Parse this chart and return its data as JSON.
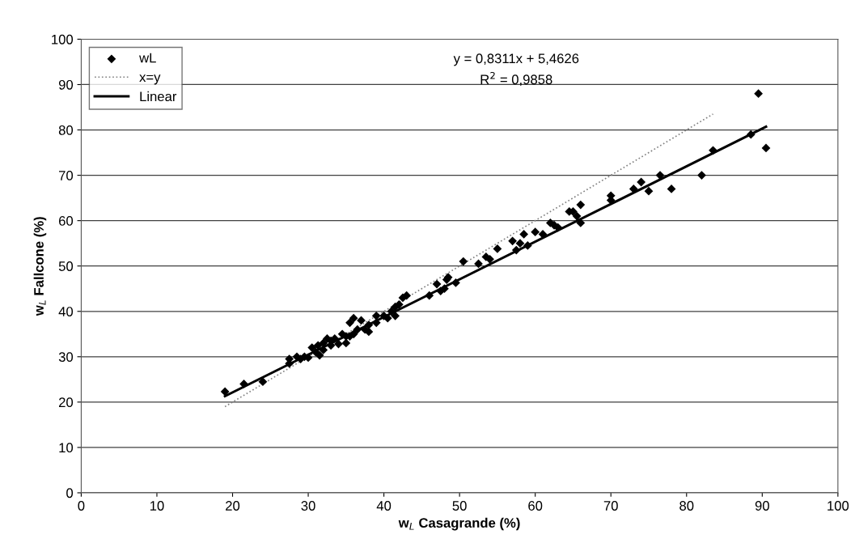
{
  "chart_data": {
    "type": "scatter",
    "xlabel": "w$_{L}$ Casagrande (%)",
    "ylabel": "w$_{L}$ Fallcone (%)",
    "xlim": [
      0,
      100
    ],
    "ylim": [
      0,
      100
    ],
    "xticks": [
      0,
      10,
      20,
      30,
      40,
      50,
      60,
      70,
      80,
      90,
      100
    ],
    "yticks": [
      0,
      10,
      20,
      30,
      40,
      50,
      60,
      70,
      80,
      90,
      100
    ],
    "grid": "y",
    "legend": "top left",
    "marker": "diamond",
    "annotations": [
      "y = 0,8311x + 5,4626",
      "R$^{2}$ = 0,9858"
    ],
    "series": [
      {
        "name": "wL",
        "color": "#000000",
        "x": [
          19,
          21.5,
          24,
          27.5,
          27.5,
          28.5,
          29,
          29.5,
          30,
          30.5,
          31,
          31.3,
          31.5,
          32,
          32,
          32.5,
          33,
          33,
          33.5,
          34,
          34.5,
          35,
          35,
          35.5,
          35.5,
          36,
          36,
          36.5,
          37,
          37.5,
          38,
          38,
          39,
          39,
          40,
          40.5,
          41,
          41.5,
          41.5,
          42,
          42.5,
          43,
          46,
          47,
          47.5,
          48,
          48.3,
          48.5,
          49.5,
          50.5,
          52.5,
          53.5,
          54,
          55,
          57,
          57.5,
          58,
          58.5,
          59,
          60,
          61,
          62,
          62.5,
          63,
          64.5,
          65,
          65.5,
          66,
          66,
          70,
          70,
          73,
          74,
          75,
          76.5,
          78,
          82,
          83.5,
          88.5,
          89.5,
          90.5
        ],
        "values": [
          22.3,
          24,
          24.5,
          28.5,
          29.5,
          30,
          29.5,
          30,
          29.8,
          32,
          31,
          32.5,
          30.3,
          33,
          31.5,
          34,
          32.5,
          33.5,
          34,
          32.8,
          35,
          33,
          34.5,
          37.5,
          34.5,
          38.5,
          35,
          36,
          38,
          36,
          37,
          35.5,
          37.5,
          39,
          39,
          38.5,
          40,
          39,
          41,
          41.5,
          43,
          43.5,
          43.5,
          46,
          44.5,
          45,
          47,
          47.5,
          46.3,
          51,
          50.5,
          52,
          51.5,
          53.8,
          55.5,
          53.5,
          55,
          57,
          54.5,
          57.5,
          57,
          59.5,
          59,
          58.5,
          62,
          62,
          61,
          63.5,
          59.5,
          64.5,
          65.5,
          67,
          68.5,
          66.5,
          70,
          67,
          70,
          75.5,
          79,
          88,
          76
        ]
      },
      {
        "name": "x=y",
        "type": "line",
        "color": "#808080",
        "line_style": "dotted",
        "marker": "none",
        "x": [
          19,
          83.5
        ],
        "values": [
          19,
          83.5
        ]
      },
      {
        "name": "Linear",
        "type": "line",
        "color": "#000000",
        "line_style": "solid",
        "marker": "none",
        "x": [
          19,
          90.5
        ],
        "values": [
          21.3,
          80.7
        ]
      }
    ]
  }
}
